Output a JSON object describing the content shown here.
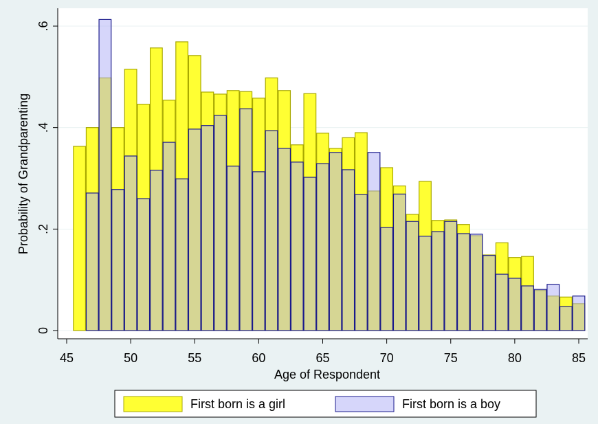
{
  "chart_data": {
    "type": "bar",
    "x_label": "Age of Respondent",
    "y_label": "Probability of Grandparenting",
    "x": [
      46,
      47,
      48,
      49,
      50,
      51,
      52,
      53,
      54,
      55,
      56,
      57,
      58,
      59,
      60,
      61,
      62,
      63,
      64,
      65,
      66,
      67,
      68,
      69,
      70,
      71,
      72,
      73,
      74,
      75,
      76,
      77,
      78,
      79,
      80,
      81,
      82,
      83,
      84,
      85
    ],
    "series": [
      {
        "name": "First born is a girl",
        "color": "#ffff33",
        "edge": "#a8a800",
        "values": [
          0.363,
          0.4,
          0.498,
          0.4,
          0.515,
          0.446,
          0.557,
          0.454,
          0.569,
          0.542,
          0.47,
          0.466,
          0.473,
          0.471,
          0.458,
          0.498,
          0.473,
          0.366,
          0.467,
          0.389,
          0.359,
          0.38,
          0.39,
          0.275,
          0.321,
          0.285,
          0.229,
          0.294,
          0.217,
          0.218,
          0.209,
          0.187,
          0.149,
          0.173,
          0.144,
          0.146,
          0.079,
          0.068,
          0.066,
          0.053
        ]
      },
      {
        "name": "First born is a boy",
        "color": "#adadf5",
        "edge": "#1a1a8c",
        "values": [
          null,
          0.271,
          0.613,
          0.278,
          0.344,
          0.26,
          0.316,
          0.371,
          0.299,
          0.397,
          0.404,
          0.424,
          0.324,
          0.437,
          0.313,
          0.394,
          0.359,
          0.332,
          0.302,
          0.329,
          0.351,
          0.317,
          0.268,
          0.351,
          0.203,
          0.269,
          0.215,
          0.186,
          0.195,
          0.215,
          0.191,
          0.19,
          0.148,
          0.111,
          0.103,
          0.088,
          0.081,
          0.091,
          0.047,
          0.068
        ]
      }
    ],
    "xlim": [
      45,
      85
    ],
    "xticks": [
      45,
      50,
      55,
      60,
      65,
      70,
      75,
      80,
      85
    ],
    "ylim": [
      0,
      0.6
    ],
    "yticks": [
      0,
      {
        "value": 0.2,
        "label": ".2"
      },
      {
        "value": 0.4,
        "label": ".4"
      },
      {
        "value": 0.6,
        "label": ".6"
      }
    ],
    "grid": true
  }
}
